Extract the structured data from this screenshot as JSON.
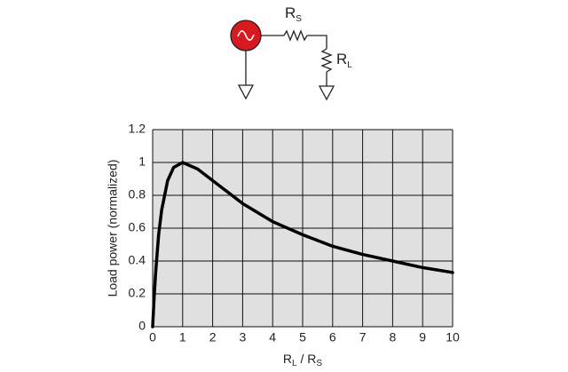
{
  "chart_data": {
    "type": "line",
    "circuit": {
      "source_resistor": [
        "R",
        "S"
      ],
      "load_resistor": [
        "R",
        "L"
      ]
    },
    "ylabel": "Load power (normalized)",
    "xlabel": [
      "R",
      "L",
      " / R",
      "S"
    ],
    "x": [
      0,
      0.05,
      0.1,
      0.2,
      0.3,
      0.5,
      0.7,
      1,
      1.5,
      2,
      3,
      4,
      5,
      6,
      7,
      8,
      9,
      10
    ],
    "values": [
      0,
      0.18,
      0.33,
      0.56,
      0.71,
      0.89,
      0.97,
      1,
      0.96,
      0.89,
      0.75,
      0.64,
      0.56,
      0.49,
      0.44,
      0.4,
      0.36,
      0.33
    ],
    "color": "#000000",
    "xlim": [
      0,
      10
    ],
    "xticks": [
      0,
      1,
      2,
      3,
      4,
      5,
      6,
      7,
      8,
      9,
      10
    ],
    "ylim": [
      0,
      1.2
    ],
    "yticks": [
      0,
      0.2,
      0.4,
      0.6,
      0.8,
      1,
      1.2
    ],
    "grid": true
  }
}
